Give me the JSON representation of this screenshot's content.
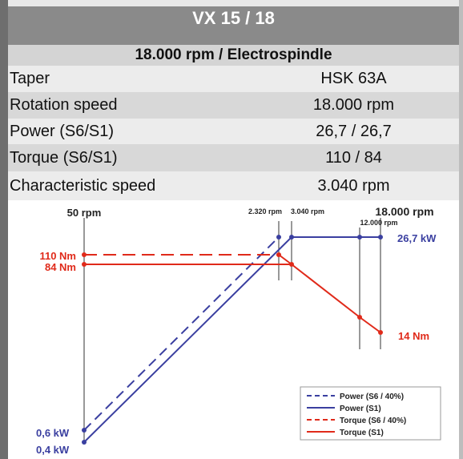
{
  "header": {
    "title": "VX 15 / 18",
    "subtitle": "18.000 rpm / Electrospindle"
  },
  "table": {
    "rows": [
      [
        "Taper",
        "HSK 63A"
      ],
      [
        "Rotation speed",
        "18.000 rpm"
      ],
      [
        "Power (S6/S1)",
        "26,7 / 26,7"
      ],
      [
        "Torque (S6/S1)",
        "110 / 84"
      ],
      [
        "Characteristic speed",
        "3.040 rpm"
      ]
    ]
  },
  "diagram": {
    "labels": {
      "min_speed": "50 rpm",
      "speed_a": "2.320 rpm",
      "speed_b": "3.040 rpm",
      "max_speed": "18.000 rpm",
      "speed_c": "12.000 rpm",
      "power_max": "26,7 kW",
      "torque_s6": "110 Nm",
      "torque_s1": "84 Nm",
      "torque_end": "14 Nm",
      "power_s6_min": "0,6 kW",
      "power_s1_min": "0,4 kW"
    },
    "legend": [
      "Power (S6 / 40%)",
      "Power (S1)",
      "Torque (S6 / 40%)",
      "Torque (S1)"
    ]
  }
}
